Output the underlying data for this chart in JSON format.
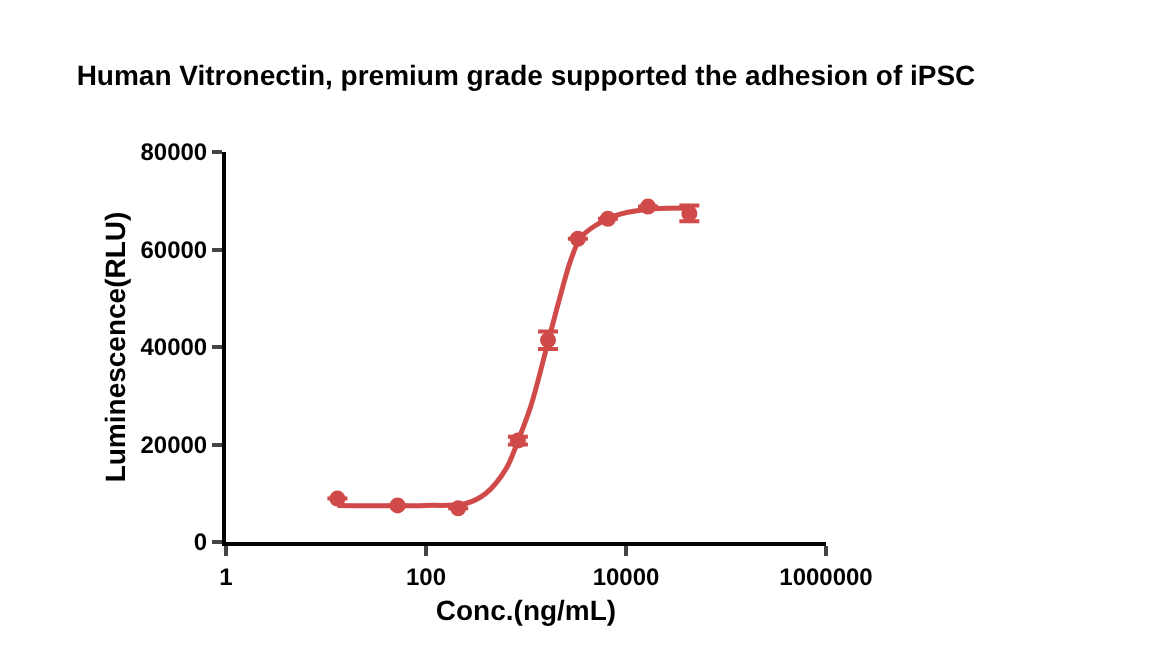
{
  "chart_data": {
    "type": "scatter",
    "title": "Human Vitronectin, premium grade supported the adhesion of iPSC",
    "xlabel": "Conc.(ng/mL)",
    "ylabel": "Luminescence(RLU)",
    "log": "x",
    "marker": "circle",
    "xlim": [
      1,
      1000000
    ],
    "xticks": [
      1,
      100,
      10000,
      1000000
    ],
    "ylim": [
      0,
      80000
    ],
    "yticks": [
      0,
      20000,
      40000,
      60000,
      80000
    ],
    "series": [
      {
        "color": "#d04a4a",
        "x": [
          13,
          52,
          210,
          830,
          1660,
          3300,
          6600,
          16600,
          43000
        ],
        "values": [
          8900,
          7500,
          6900,
          20800,
          41400,
          62200,
          66300,
          68800,
          67400
        ],
        "errors": [
          null,
          null,
          null,
          800,
          1800,
          null,
          null,
          null,
          1600
        ]
      },
      {
        "type": "line",
        "color": "#d04a4a",
        "marker": "none",
        "line_style": "solid",
        "x": [
          13,
          100,
          251,
          398,
          631,
          832,
          1122,
          1660,
          2239,
          2818,
          3548,
          5012,
          7943,
          15849,
          43652
        ],
        "values": [
          7500,
          7500,
          7900,
          10000,
          15000,
          20800,
          28000,
          41000,
          51000,
          58000,
          62500,
          65000,
          67000,
          68200,
          68500
        ]
      }
    ]
  }
}
